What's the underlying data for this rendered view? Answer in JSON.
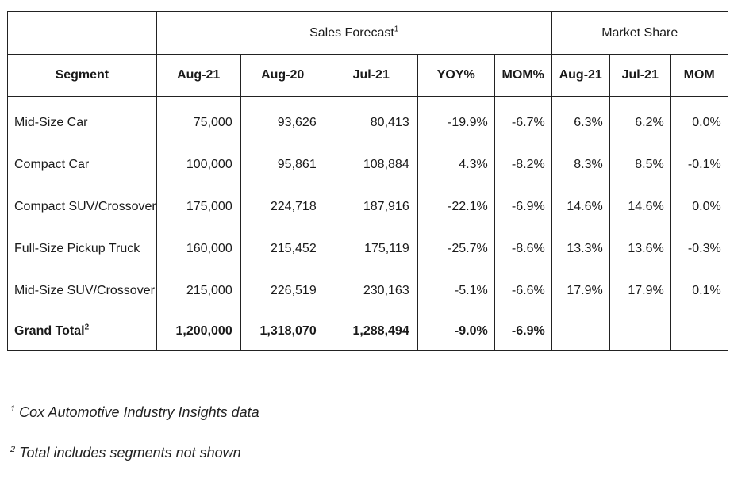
{
  "table": {
    "group_headers": {
      "sales_forecast": "Sales Forecast",
      "sales_forecast_note": "1",
      "market_share": "Market Share"
    },
    "column_headers": [
      "Segment",
      "Aug-21",
      "Aug-20",
      "Jul-21",
      "YOY%",
      "MOM%",
      "Aug-21",
      "Jul-21",
      "MOM"
    ],
    "rows": [
      [
        "Mid-Size Car",
        "75,000",
        "93,626",
        "80,413",
        "-19.9%",
        "-6.7%",
        "6.3%",
        "6.2%",
        "0.0%"
      ],
      [
        "Compact Car",
        "100,000",
        "95,861",
        "108,884",
        "4.3%",
        "-8.2%",
        "8.3%",
        "8.5%",
        "-0.1%"
      ],
      [
        "Compact SUV/Crossover",
        "175,000",
        "224,718",
        "187,916",
        "-22.1%",
        "-6.9%",
        "14.6%",
        "14.6%",
        "0.0%"
      ],
      [
        "Full-Size Pickup Truck",
        "160,000",
        "215,452",
        "175,119",
        "-25.7%",
        "-8.6%",
        "13.3%",
        "13.6%",
        "-0.3%"
      ],
      [
        "Mid-Size SUV/Crossover",
        "215,000",
        "226,519",
        "230,163",
        "-5.1%",
        "-6.6%",
        "17.9%",
        "17.9%",
        "0.1%"
      ]
    ],
    "total": {
      "label": "Grand Total",
      "label_note": "2",
      "values": [
        "1,200,000",
        "1,318,070",
        "1,288,494",
        "-9.0%",
        "-6.9%",
        "",
        "",
        ""
      ]
    }
  },
  "footnotes": [
    {
      "mark": "1",
      "text": "Cox Automotive Industry Insights data"
    },
    {
      "mark": "2",
      "text": "Total includes segments not shown"
    }
  ]
}
